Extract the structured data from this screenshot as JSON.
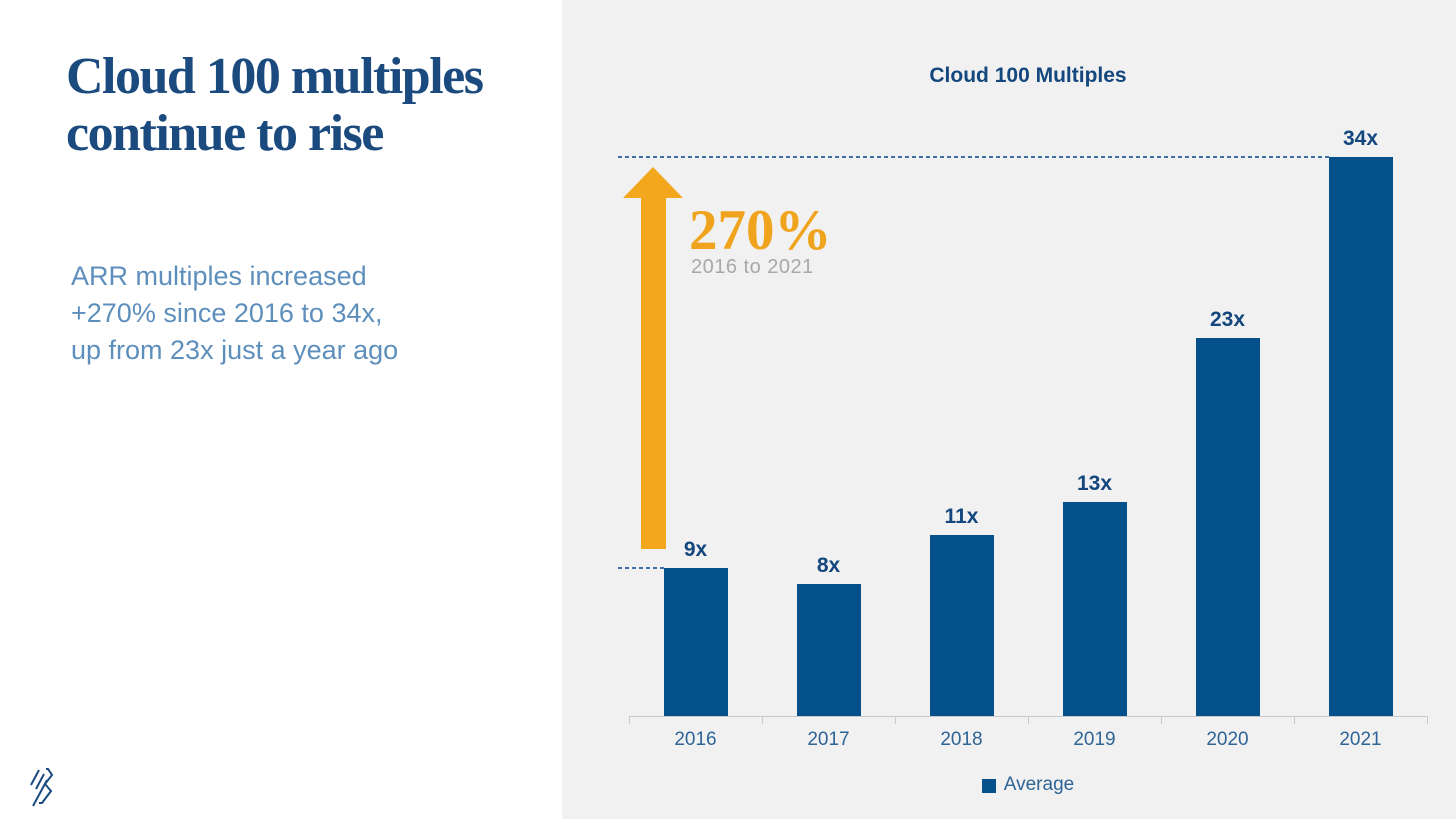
{
  "slide": {
    "title_lines": [
      "Cloud 100 multiples",
      "continue to rise"
    ],
    "subtitle_lines": [
      "ARR multiples increased",
      "+270% since 2016 to 34x,",
      "up from 23x just a year ago"
    ]
  },
  "annotation": {
    "percent": "270%",
    "period": "2016 to 2021",
    "arrow_direction": "up"
  },
  "chart_data": {
    "type": "bar",
    "title": "Cloud 100 Multiples",
    "categories": [
      "2016",
      "2017",
      "2018",
      "2019",
      "2020",
      "2021"
    ],
    "series": [
      {
        "name": "Average",
        "values": [
          9,
          8,
          11,
          13,
          23,
          34
        ]
      }
    ],
    "value_labels": [
      "9x",
      "8x",
      "11x",
      "13x",
      "23x",
      "34x"
    ],
    "xlabel": "",
    "ylabel": "",
    "ylim": [
      0,
      34
    ],
    "grid": false,
    "legend": [
      "Average"
    ],
    "legend_position": "bottom",
    "reference_lines": [
      {
        "at_value": 34,
        "style": "dashed"
      },
      {
        "at_value": 9,
        "style": "dashed"
      }
    ]
  },
  "colors": {
    "title_navy": "#1b4a7e",
    "subtitle_blue": "#5e8fbc",
    "bar_blue": "#04508a",
    "label_navy": "#14477d",
    "axis_text_blue": "#2e6496",
    "arrow_orange": "#f2a71d",
    "percent_orange": "#f0a41e",
    "panel_gray": "#f1f1f1",
    "axis_line_gray": "#c9c9c9",
    "dashed_blue": "#3f6fa6",
    "period_gray": "#a8a8a8"
  },
  "logo": {
    "name": "bessemer-logo"
  }
}
